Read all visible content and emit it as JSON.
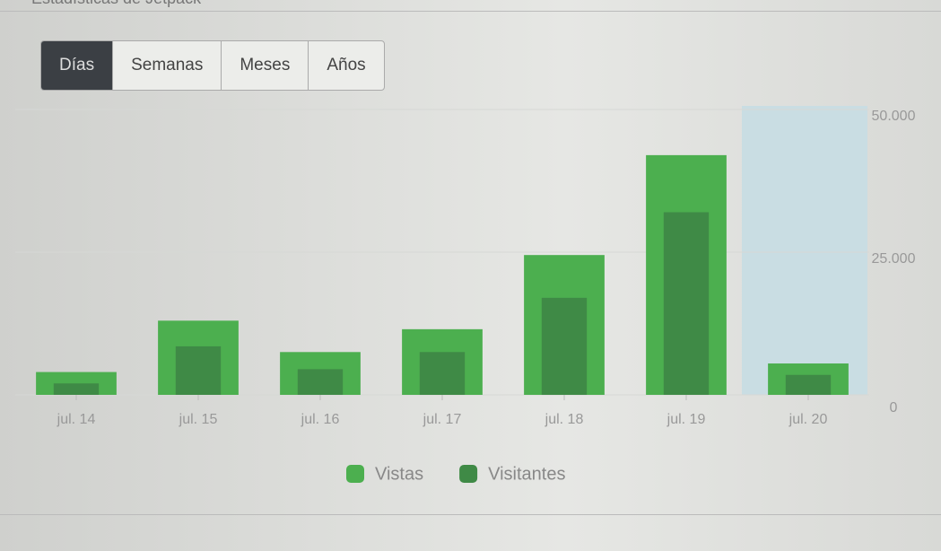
{
  "header_title": "Estadísticas de Jetpack",
  "tabs": [
    "Días",
    "Semanas",
    "Meses",
    "Años"
  ],
  "chart_data": {
    "type": "bar",
    "categories": [
      "jul. 14",
      "jul. 15",
      "jul. 16",
      "jul. 17",
      "jul. 18",
      "jul. 19",
      "jul. 20"
    ],
    "series": [
      {
        "name": "Vistas",
        "color": "#4caf4f",
        "values": [
          4000,
          13000,
          7500,
          11500,
          24500,
          42000,
          5500
        ]
      },
      {
        "name": "Visitantes",
        "color": "#3f8a46",
        "values": [
          2000,
          8500,
          4500,
          7500,
          17000,
          32000,
          3500
        ]
      }
    ],
    "ylim": [
      0,
      50000
    ],
    "yticks": [
      0,
      {
        "value": 25000,
        "label": "25.000"
      },
      {
        "value": 50000,
        "label": "50.000"
      }
    ],
    "grid": true,
    "legend": "bottom"
  }
}
